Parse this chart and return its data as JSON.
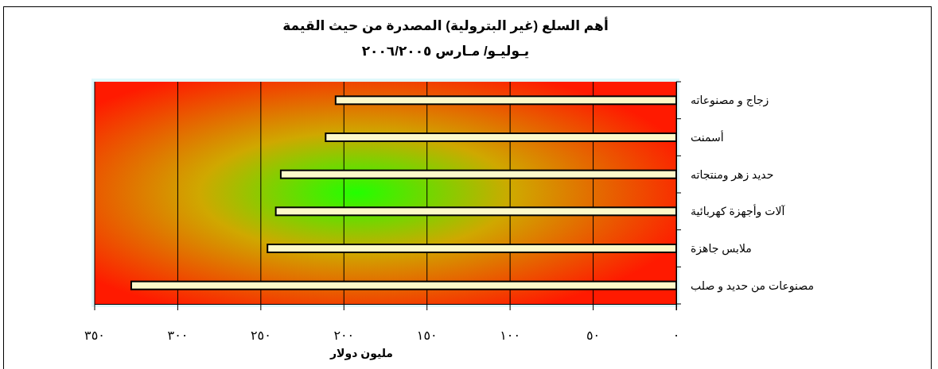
{
  "chart_data": {
    "type": "bar",
    "orientation": "horizontal",
    "title": "أهم السلع (غير البترولية) المصدرة من حيث القيمة",
    "subtitle": "يـوليـو/ مـارس ٢٠٠٦/٢٠٠٥",
    "xlabel": "مليون دولار",
    "categories": [
      "زجاج و مصنوعاته",
      "أسمنت",
      "حديد زهر ومنتجاته",
      "آلات وأجهزة كهربائية",
      "ملابس جاهزة",
      "مصنوعات من حديد و صلب"
    ],
    "values": [
      205,
      211,
      238,
      241,
      246,
      328
    ],
    "color": "#fdf9c9",
    "xlim": [
      350,
      0
    ],
    "xticks": [
      {
        "value": 350,
        "label": "٣٥٠"
      },
      {
        "value": 300,
        "label": "٣٠٠"
      },
      {
        "value": 250,
        "label": "٢٥٠"
      },
      {
        "value": 200,
        "label": "٢٠٠"
      },
      {
        "value": 150,
        "label": "١٥٠"
      },
      {
        "value": 100,
        "label": "١٠٠"
      },
      {
        "value": 50,
        "label": "٥٠"
      },
      {
        "value": 0,
        "label": "٠"
      }
    ],
    "grid": "x"
  }
}
